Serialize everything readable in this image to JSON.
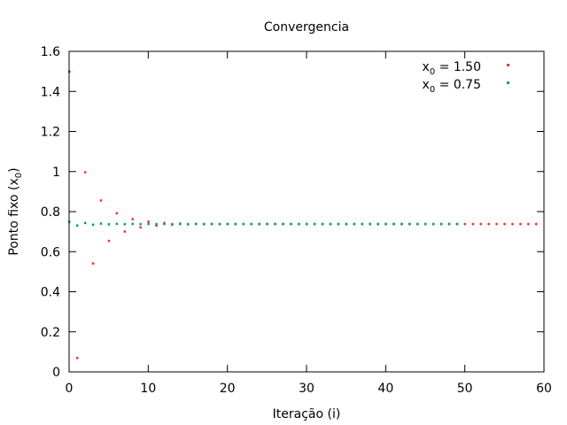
{
  "chart_data": {
    "type": "scatter",
    "title": "Convergencia",
    "xlabel": "Iteração (i)",
    "ylabel": "Ponto fixo (x",
    "ylabel_sub": "0",
    "ylabel_end": ")",
    "xlim": [
      0,
      60
    ],
    "ylim": [
      0,
      1.6
    ],
    "xticks": [
      0,
      10,
      20,
      30,
      40,
      50,
      60
    ],
    "yticks": [
      0,
      0.2,
      0.4,
      0.6,
      0.8,
      1,
      1.2,
      1.4,
      1.6
    ],
    "grid": false,
    "legend_position": "top-right",
    "series": [
      {
        "name": "x0 = 1.50",
        "legend_main": "x",
        "legend_sub": "0",
        "legend_rest": " = 1.50",
        "color": "#e5361e",
        "x": [
          0,
          1,
          2,
          3,
          4,
          5,
          6,
          7,
          8,
          9,
          10,
          11,
          12,
          13,
          14,
          15,
          16,
          17,
          18,
          19,
          20,
          21,
          22,
          23,
          24,
          25,
          26,
          27,
          28,
          29,
          30,
          31,
          32,
          33,
          34,
          35,
          36,
          37,
          38,
          39,
          40,
          41,
          42,
          43,
          44,
          45,
          46,
          47,
          48,
          49,
          50,
          51,
          52,
          53,
          54,
          55,
          56,
          57,
          58,
          59
        ],
        "y": [
          1.5,
          0.0707,
          0.9975,
          0.5424,
          0.8565,
          0.6551,
          0.7929,
          0.7017,
          0.7638,
          0.7222,
          0.7504,
          0.7314,
          0.7442,
          0.7356,
          0.7414,
          0.7375,
          0.7401,
          0.7383,
          0.7395,
          0.7387,
          0.7393,
          0.7389,
          0.7392,
          0.739,
          0.7391,
          0.739,
          0.7391,
          0.739,
          0.7391,
          0.7391,
          0.7391,
          0.7391,
          0.7391,
          0.7391,
          0.7391,
          0.7391,
          0.7391,
          0.7391,
          0.7391,
          0.7391,
          0.7391,
          0.7391,
          0.7391,
          0.7391,
          0.7391,
          0.7391,
          0.7391,
          0.7391,
          0.7391,
          0.7391,
          0.7391,
          0.7391,
          0.7391,
          0.7391,
          0.7391,
          0.7391,
          0.7391,
          0.7391,
          0.7391,
          0.7391
        ]
      },
      {
        "name": "x0 = 0.75",
        "legend_main": "x",
        "legend_sub": "0",
        "legend_rest": " = 0.75",
        "color": "#009e73",
        "x": [
          0,
          1,
          2,
          3,
          4,
          5,
          6,
          7,
          8,
          9,
          10,
          11,
          12,
          13,
          14,
          15,
          16,
          17,
          18,
          19,
          20,
          21,
          22,
          23,
          24,
          25,
          26,
          27,
          28,
          29,
          30,
          31,
          32,
          33,
          34,
          35,
          36,
          37,
          38,
          39,
          40,
          41,
          42,
          43,
          44,
          45,
          46,
          47,
          48,
          49
        ],
        "y": [
          0.75,
          0.7317,
          0.744,
          0.7357,
          0.7413,
          0.7376,
          0.7401,
          0.7384,
          0.7395,
          0.7388,
          0.7393,
          0.7389,
          0.7392,
          0.739,
          0.7391,
          0.739,
          0.7391,
          0.7391,
          0.7391,
          0.7391,
          0.7391,
          0.7391,
          0.7391,
          0.7391,
          0.7391,
          0.7391,
          0.7391,
          0.7391,
          0.7391,
          0.7391,
          0.7391,
          0.7391,
          0.7391,
          0.7391,
          0.7391,
          0.7391,
          0.7391,
          0.7391,
          0.7391,
          0.7391,
          0.7391,
          0.7391,
          0.7391,
          0.7391,
          0.7391,
          0.7391,
          0.7391,
          0.7391,
          0.7391,
          0.7391
        ]
      }
    ]
  }
}
